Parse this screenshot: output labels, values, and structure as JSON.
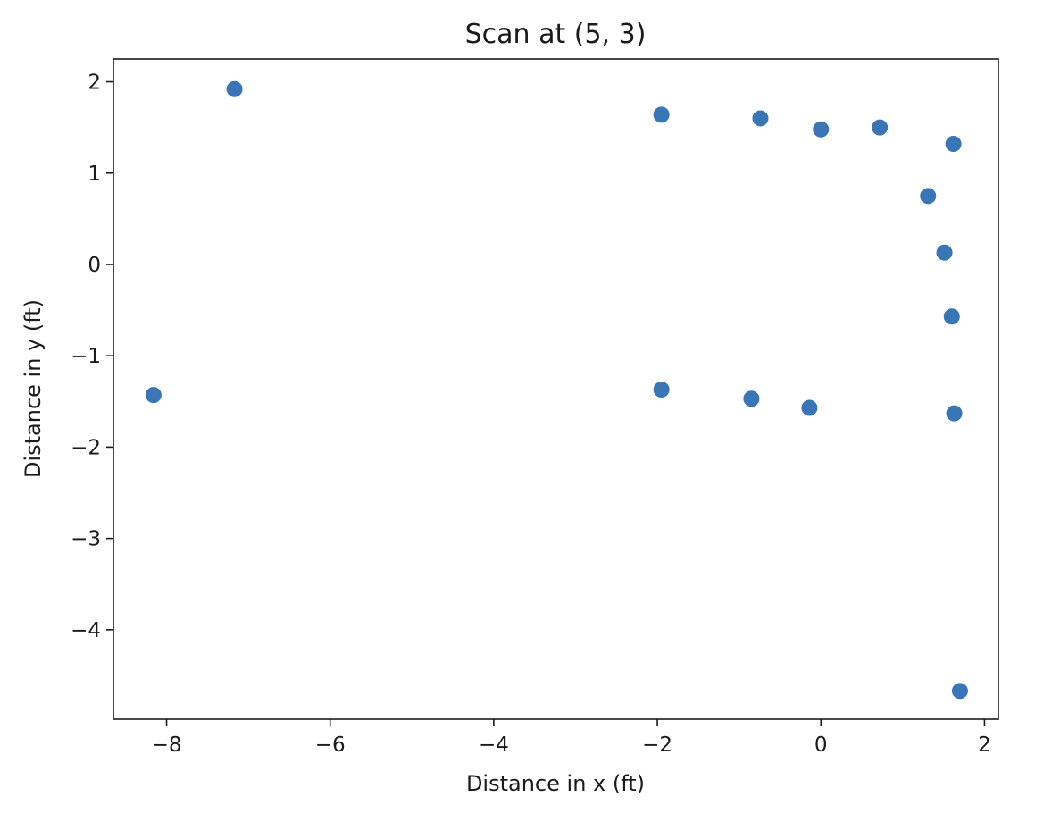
{
  "chart_data": {
    "type": "scatter",
    "title": "Scan at (5, 3)",
    "xlabel": "Distance in x (ft)",
    "ylabel": "Distance in y (ft)",
    "xlim": [
      -8.65,
      2.17
    ],
    "ylim": [
      -4.98,
      2.25
    ],
    "xticks": [
      -8,
      -6,
      -4,
      -2,
      0,
      2
    ],
    "yticks": [
      2,
      1,
      0,
      -1,
      -2,
      -3,
      -4
    ],
    "xtick_labels": [
      "−8",
      "−6",
      "−4",
      "−2",
      "0",
      "2"
    ],
    "ytick_labels": [
      "2",
      "1",
      "0",
      "−1",
      "−2",
      "−3",
      "−4"
    ],
    "grid": false,
    "marker_color": "#3a76b5",
    "points": [
      {
        "x": -7.17,
        "y": 1.92
      },
      {
        "x": -8.16,
        "y": -1.43
      },
      {
        "x": -1.95,
        "y": 1.64
      },
      {
        "x": -0.74,
        "y": 1.6
      },
      {
        "x": 0.0,
        "y": 1.48
      },
      {
        "x": 0.72,
        "y": 1.5
      },
      {
        "x": 1.62,
        "y": 1.32
      },
      {
        "x": 1.31,
        "y": 0.75
      },
      {
        "x": 1.51,
        "y": 0.13
      },
      {
        "x": 1.6,
        "y": -0.57
      },
      {
        "x": -1.95,
        "y": -1.37
      },
      {
        "x": -0.85,
        "y": -1.47
      },
      {
        "x": -0.14,
        "y": -1.57
      },
      {
        "x": 1.63,
        "y": -1.63
      },
      {
        "x": 1.7,
        "y": -4.67
      }
    ]
  }
}
